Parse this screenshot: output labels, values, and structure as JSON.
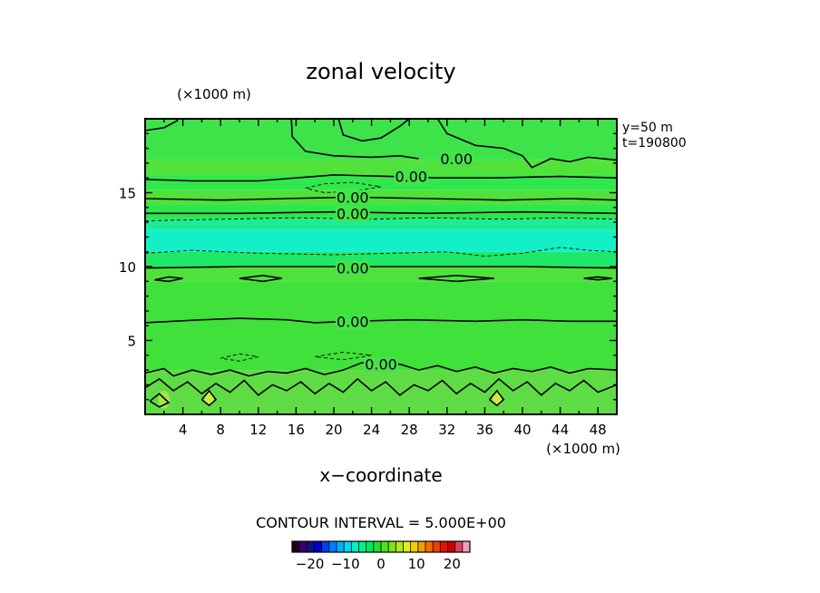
{
  "chart_data": {
    "type": "heatmap",
    "title": "zonal velocity",
    "xlabel": "x−coordinate",
    "x_unit_label": "(×1000 m)",
    "y_unit_label": "(×1000 m)",
    "annotations": [
      "y=50 m",
      "t=190800"
    ],
    "xlim": [
      0,
      50
    ],
    "ylim": [
      0,
      20
    ],
    "x_ticks": [
      4,
      8,
      12,
      16,
      20,
      24,
      28,
      32,
      36,
      40,
      44,
      48
    ],
    "y_ticks": [
      5,
      10,
      15
    ],
    "contour_interval_text": "CONTOUR INTERVAL = 5.000E+00",
    "contour_labels": [
      {
        "text": "0.00",
        "x": 33,
        "y": 17.3
      },
      {
        "text": "0.00",
        "x": 28.2,
        "y": 16.1
      },
      {
        "text": "0.00",
        "x": 22,
        "y": 14.7
      },
      {
        "text": "0.00",
        "x": 22,
        "y": 13.6
      },
      {
        "text": "0.00",
        "x": 22,
        "y": 9.9
      },
      {
        "text": "0.00",
        "x": 22,
        "y": 6.3
      },
      {
        "text": "0.00",
        "x": 25,
        "y": 3.4
      }
    ],
    "colorbar": {
      "range": [
        -25,
        25
      ],
      "tick_values": [
        -20,
        -10,
        0,
        10,
        20
      ],
      "tick_labels": [
        "−20",
        "−10",
        "0",
        "10",
        "20"
      ],
      "colors": [
        "#200020",
        "#3a0070",
        "#10108c",
        "#0000c8",
        "#0040f0",
        "#0080ff",
        "#00b0ff",
        "#00d8f0",
        "#00f0c0",
        "#00f090",
        "#00e860",
        "#20e030",
        "#50e020",
        "#80e020",
        "#b0e820",
        "#e0f020",
        "#f0d000",
        "#f0a000",
        "#f07000",
        "#f04000",
        "#e81000",
        "#c80000",
        "#e04060",
        "#f0a0b0"
      ]
    },
    "field_bands": [
      {
        "y_from": 0,
        "y_to": 3,
        "color": "#5fdc45"
      },
      {
        "y_from": 3,
        "y_to": 9,
        "color": "#3fe13a"
      },
      {
        "y_from": 9,
        "y_to": 10,
        "color": "#4ee23a"
      },
      {
        "y_from": 10,
        "y_to": 11,
        "color": "#1ee868"
      },
      {
        "y_from": 11,
        "y_to": 12.5,
        "color": "#13f0c8"
      },
      {
        "y_from": 12.5,
        "y_to": 13.2,
        "color": "#1cec9a"
      },
      {
        "y_from": 13.2,
        "y_to": 14.2,
        "color": "#2de84c"
      },
      {
        "y_from": 14.2,
        "y_to": 15.2,
        "color": "#4ee23a"
      },
      {
        "y_from": 15.2,
        "y_to": 16.2,
        "color": "#30e84c"
      },
      {
        "y_from": 16.2,
        "y_to": 17.2,
        "color": "#52e23c"
      },
      {
        "y_from": 17.2,
        "y_to": 20,
        "color": "#3ee34a"
      }
    ],
    "contours_solid": [
      [
        [
          0,
          19.2
        ],
        [
          2,
          19.4
        ],
        [
          3.5,
          19.9
        ]
      ],
      [
        [
          15.5,
          20
        ],
        [
          15.6,
          18.8
        ],
        [
          17,
          17.8
        ],
        [
          20,
          17.5
        ],
        [
          24,
          17.4
        ],
        [
          27,
          17.5
        ],
        [
          29,
          17.3
        ]
      ],
      [
        [
          20.5,
          20
        ],
        [
          21,
          18.9
        ],
        [
          23,
          18.5
        ],
        [
          25,
          18.7
        ],
        [
          27,
          19.5
        ],
        [
          28,
          20
        ]
      ],
      [
        [
          31,
          20
        ],
        [
          32,
          19
        ],
        [
          35,
          18.2
        ],
        [
          38,
          18
        ],
        [
          40,
          17.5
        ],
        [
          41,
          16.7
        ],
        [
          43,
          17.3
        ],
        [
          45,
          17.1
        ],
        [
          47,
          17.4
        ],
        [
          50,
          17.2
        ]
      ],
      [
        [
          0,
          15.9
        ],
        [
          5,
          15.8
        ],
        [
          12,
          15.8
        ],
        [
          20,
          16.2
        ],
        [
          26,
          16.1
        ],
        [
          31,
          16
        ],
        [
          37,
          16
        ],
        [
          44,
          16.1
        ],
        [
          50,
          16
        ]
      ],
      [
        [
          0,
          14.6
        ],
        [
          8,
          14.5
        ],
        [
          15,
          14.6
        ],
        [
          22,
          14.7
        ],
        [
          30,
          14.6
        ],
        [
          38,
          14.5
        ],
        [
          45,
          14.6
        ],
        [
          50,
          14.5
        ]
      ],
      [
        [
          0,
          13.6
        ],
        [
          10,
          13.6
        ],
        [
          20,
          13.7
        ],
        [
          30,
          13.6
        ],
        [
          40,
          13.7
        ],
        [
          50,
          13.6
        ]
      ],
      [
        [
          0,
          9.9
        ],
        [
          10,
          10
        ],
        [
          20,
          10
        ],
        [
          30,
          10
        ],
        [
          40,
          10
        ],
        [
          50,
          9.9
        ]
      ],
      [
        [
          1,
          9.1
        ],
        [
          2.5,
          9.3
        ],
        [
          4,
          9.2
        ],
        [
          2.5,
          9.0
        ],
        [
          1,
          9.1
        ]
      ],
      [
        [
          10,
          9.2
        ],
        [
          12.5,
          9.4
        ],
        [
          14.5,
          9.2
        ],
        [
          12.5,
          9.0
        ],
        [
          10,
          9.2
        ]
      ],
      [
        [
          29,
          9.2
        ],
        [
          33,
          9.4
        ],
        [
          37,
          9.2
        ],
        [
          33,
          9.0
        ],
        [
          29,
          9.2
        ]
      ],
      [
        [
          46.5,
          9.2
        ],
        [
          48,
          9.3
        ],
        [
          49.5,
          9.2
        ],
        [
          48,
          9.1
        ],
        [
          46.5,
          9.2
        ]
      ],
      [
        [
          0,
          6.2
        ],
        [
          6,
          6.4
        ],
        [
          10,
          6.5
        ],
        [
          15,
          6.4
        ],
        [
          18,
          6.2
        ],
        [
          22,
          6.3
        ],
        [
          28,
          6.4
        ],
        [
          35,
          6.3
        ],
        [
          40,
          6.4
        ],
        [
          45,
          6.3
        ],
        [
          50,
          6.3
        ]
      ],
      [
        [
          0,
          2.8
        ],
        [
          2,
          3.1
        ],
        [
          3,
          2.6
        ],
        [
          5,
          3
        ],
        [
          7,
          2.7
        ],
        [
          9,
          3
        ],
        [
          11,
          2.6
        ],
        [
          13,
          2.9
        ],
        [
          15,
          2.8
        ],
        [
          17,
          3.1
        ],
        [
          19,
          2.7
        ],
        [
          21,
          3
        ],
        [
          23,
          3.5
        ],
        [
          25,
          3.2
        ],
        [
          27,
          3.4
        ],
        [
          29,
          3
        ],
        [
          31,
          3.3
        ],
        [
          33,
          2.9
        ],
        [
          35,
          3.2
        ],
        [
          37,
          2.8
        ],
        [
          39,
          3.1
        ],
        [
          41,
          2.9
        ],
        [
          43,
          3.2
        ],
        [
          45,
          2.8
        ],
        [
          47,
          3.1
        ],
        [
          50,
          3.0
        ]
      ],
      [
        [
          0,
          1.8
        ],
        [
          1.5,
          2.4
        ],
        [
          3,
          1.6
        ],
        [
          4.5,
          2.2
        ],
        [
          6,
          1.4
        ],
        [
          7.5,
          2.1
        ],
        [
          9,
          1.5
        ],
        [
          10.5,
          2.3
        ],
        [
          12,
          1.3
        ],
        [
          13.5,
          2
        ],
        [
          15,
          1.6
        ],
        [
          16.5,
          2.2
        ],
        [
          18,
          1.4
        ],
        [
          19.5,
          2.1
        ],
        [
          21,
          1.5
        ],
        [
          22.5,
          2.4
        ],
        [
          24,
          1.6
        ],
        [
          25.5,
          2.2
        ],
        [
          27,
          1.3
        ],
        [
          28.5,
          2
        ],
        [
          30,
          1.6
        ],
        [
          31.5,
          2.3
        ],
        [
          33,
          1.4
        ],
        [
          34.5,
          2.1
        ],
        [
          36,
          1.5
        ],
        [
          37.5,
          2.4
        ],
        [
          39,
          1.6
        ],
        [
          40.5,
          2.2
        ],
        [
          42,
          1.3
        ],
        [
          43.5,
          2.1
        ],
        [
          45,
          1.6
        ],
        [
          46.5,
          2.3
        ],
        [
          48,
          1.5
        ],
        [
          50,
          2.0
        ]
      ],
      [
        [
          0.5,
          0.9
        ],
        [
          1.5,
          1.4
        ],
        [
          2.5,
          0.8
        ],
        [
          1.5,
          0.5
        ],
        [
          0.5,
          0.9
        ]
      ],
      [
        [
          6,
          1.0
        ],
        [
          6.8,
          1.6
        ],
        [
          7.5,
          1.0
        ],
        [
          6.8,
          0.6
        ],
        [
          6,
          1.0
        ]
      ],
      [
        [
          36.5,
          1.0
        ],
        [
          37.3,
          1.6
        ],
        [
          38,
          1.0
        ],
        [
          37.3,
          0.6
        ],
        [
          36.5,
          1.0
        ]
      ]
    ],
    "contours_dashed": [
      [
        [
          17,
          15.3
        ],
        [
          19,
          15.6
        ],
        [
          22,
          15.7
        ],
        [
          25,
          15.4
        ],
        [
          22,
          15.1
        ],
        [
          19,
          15.0
        ],
        [
          17,
          15.3
        ]
      ],
      [
        [
          0,
          13.1
        ],
        [
          8,
          13.2
        ],
        [
          16,
          13.3
        ],
        [
          24,
          13.2
        ],
        [
          30,
          13.3
        ],
        [
          38,
          13.2
        ],
        [
          44,
          13.3
        ],
        [
          50,
          13.2
        ]
      ],
      [
        [
          0,
          10.9
        ],
        [
          5,
          11.1
        ],
        [
          12,
          10.9
        ],
        [
          20,
          10.8
        ],
        [
          26,
          10.9
        ],
        [
          32,
          11
        ],
        [
          36,
          10.7
        ],
        [
          40,
          10.9
        ],
        [
          44,
          11.3
        ],
        [
          47,
          11.1
        ],
        [
          50,
          11.0
        ]
      ],
      [
        [
          8,
          3.8
        ],
        [
          10,
          4.1
        ],
        [
          12,
          3.9
        ],
        [
          10,
          3.6
        ],
        [
          8,
          3.8
        ]
      ],
      [
        [
          18,
          3.9
        ],
        [
          21,
          4.2
        ],
        [
          24,
          4.0
        ],
        [
          21,
          3.7
        ],
        [
          18,
          3.9
        ]
      ]
    ],
    "highlight_patches": [
      {
        "x": 6.8,
        "y": 1.1,
        "r": 0.5,
        "color": "#c8ec40"
      },
      {
        "x": 37.3,
        "y": 1.1,
        "r": 0.5,
        "color": "#c8ec40"
      },
      {
        "x": 2,
        "y": 1.0,
        "r": 0.6,
        "color": "#a0e840"
      }
    ]
  }
}
